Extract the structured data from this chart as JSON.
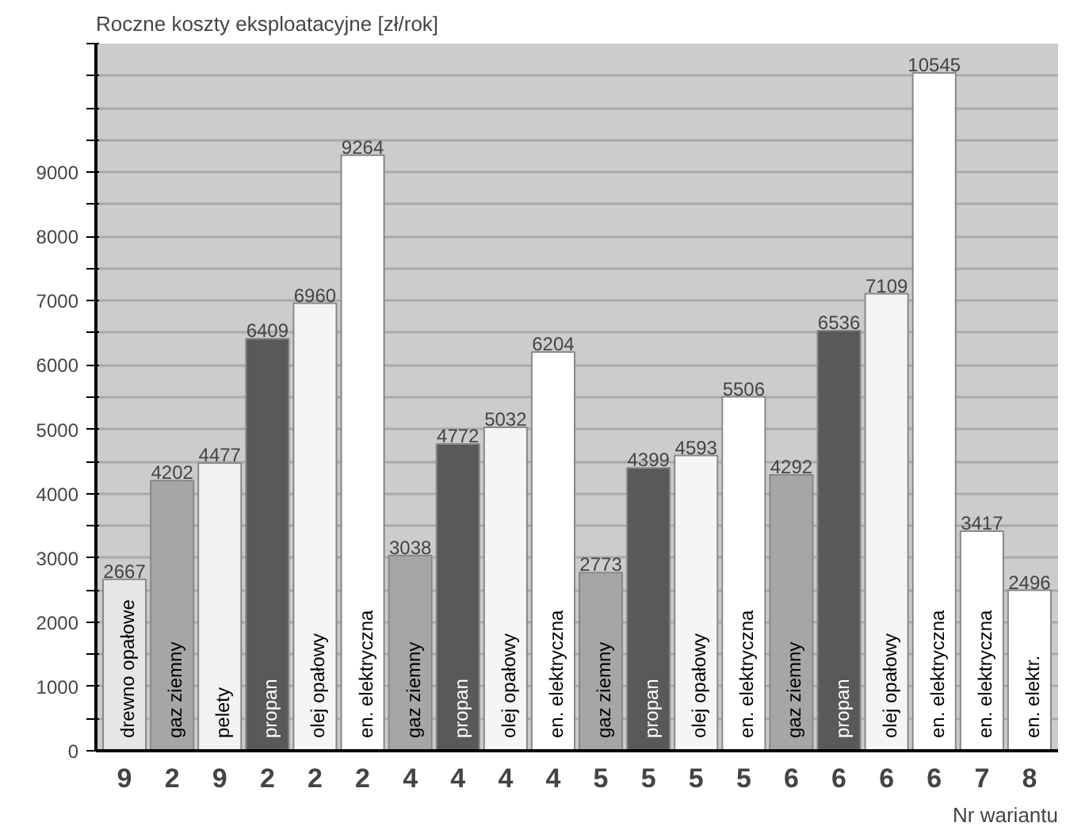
{
  "chart_data": {
    "type": "bar",
    "ylabel": "Roczne koszty eksploatacyjne [zł/rok]",
    "xlabel": "Nr wariantu",
    "categories": [
      "9",
      "2",
      "9",
      "2",
      "2",
      "2",
      "4",
      "4",
      "4",
      "4",
      "5",
      "5",
      "5",
      "5",
      "6",
      "6",
      "6",
      "6",
      "7",
      "8"
    ],
    "series": [
      {
        "name": "drewno opałowe",
        "color": "#e6e6e6",
        "values": [
          2667,
          null,
          null,
          null,
          null,
          null,
          null,
          null,
          null,
          null,
          null,
          null,
          null,
          null,
          null,
          null,
          null,
          null,
          null,
          null
        ]
      },
      {
        "name": "gaz ziemny",
        "color": "#a6a6a6",
        "values": [
          null,
          4202,
          null,
          null,
          null,
          null,
          3038,
          null,
          null,
          null,
          2773,
          null,
          null,
          null,
          4292,
          null,
          null,
          null,
          null,
          null
        ]
      },
      {
        "name": "pelety",
        "color": "#f2f2f2",
        "values": [
          null,
          null,
          4477,
          null,
          null,
          null,
          null,
          null,
          null,
          null,
          null,
          null,
          null,
          null,
          null,
          null,
          null,
          null,
          null,
          null
        ]
      },
      {
        "name": "propan",
        "color": "#595959",
        "values": [
          null,
          null,
          null,
          6409,
          null,
          null,
          null,
          4772,
          null,
          null,
          null,
          4399,
          null,
          null,
          null,
          6536,
          null,
          null,
          null,
          null
        ]
      },
      {
        "name": "olej opałowy",
        "color": "#f5f5f5",
        "values": [
          null,
          null,
          null,
          null,
          6960,
          null,
          null,
          null,
          5032,
          null,
          null,
          null,
          4593,
          null,
          null,
          null,
          7109,
          null,
          null,
          null
        ]
      },
      {
        "name": "en. elektryczna",
        "color": "#ffffff",
        "values": [
          null,
          null,
          null,
          null,
          null,
          9264,
          null,
          null,
          null,
          6204,
          null,
          null,
          null,
          5506,
          null,
          null,
          null,
          10545,
          3417,
          null
        ]
      },
      {
        "name": "en. elektr.",
        "color": "#ffffff",
        "values": [
          null,
          null,
          null,
          null,
          null,
          null,
          null,
          null,
          null,
          null,
          null,
          null,
          null,
          null,
          null,
          null,
          null,
          null,
          null,
          2496
        ]
      }
    ],
    "ylim": [
      0,
      11000
    ],
    "yticks": [
      0,
      {
        "value": 500,
        "label": null
      },
      1000,
      {
        "value": 1500,
        "label": null
      },
      2000,
      {
        "value": 2500,
        "label": null
      },
      3000,
      {
        "value": 3500,
        "label": null
      },
      4000,
      {
        "value": 4500,
        "label": null
      },
      5000,
      {
        "value": 5500,
        "label": null
      },
      6000,
      {
        "value": 6500,
        "label": null
      },
      7000,
      {
        "value": 7500,
        "label": null
      },
      8000,
      {
        "value": 8500,
        "label": null
      },
      9000,
      {
        "value": 9500,
        "label": null
      },
      {
        "value": 10000,
        "label": null
      },
      {
        "value": 10500,
        "label": null
      },
      {
        "value": 11000,
        "label": null
      }
    ],
    "grid": "y",
    "data_labels": true
  }
}
